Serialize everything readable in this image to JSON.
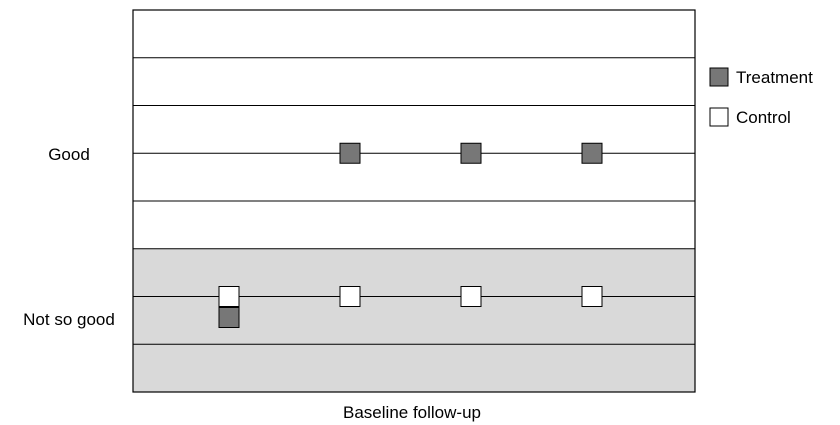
{
  "chart_data": {
    "type": "scatter",
    "title": "",
    "xlabel": "Baseline follow-up",
    "ylabel": "",
    "y_categories": [
      "Not so good",
      "Good"
    ],
    "x_points": 4,
    "shaded_region": "Not so good",
    "series": [
      {
        "name": "Treatment",
        "color": "#777777",
        "points": [
          {
            "x": 1,
            "y": "Not so good"
          },
          {
            "x": 2,
            "y": "Good"
          },
          {
            "x": 3,
            "y": "Good"
          },
          {
            "x": 4,
            "y": "Good"
          }
        ]
      },
      {
        "name": "Control",
        "color": "#ffffff",
        "points": [
          {
            "x": 1,
            "y": "Not so good"
          },
          {
            "x": 2,
            "y": "Not so good"
          },
          {
            "x": 3,
            "y": "Not so good"
          },
          {
            "x": 4,
            "y": "Not so good"
          }
        ]
      }
    ],
    "legend_position": "right",
    "grid": true
  },
  "colors": {
    "shade": "#d9d9d9",
    "axis": "#000000"
  }
}
